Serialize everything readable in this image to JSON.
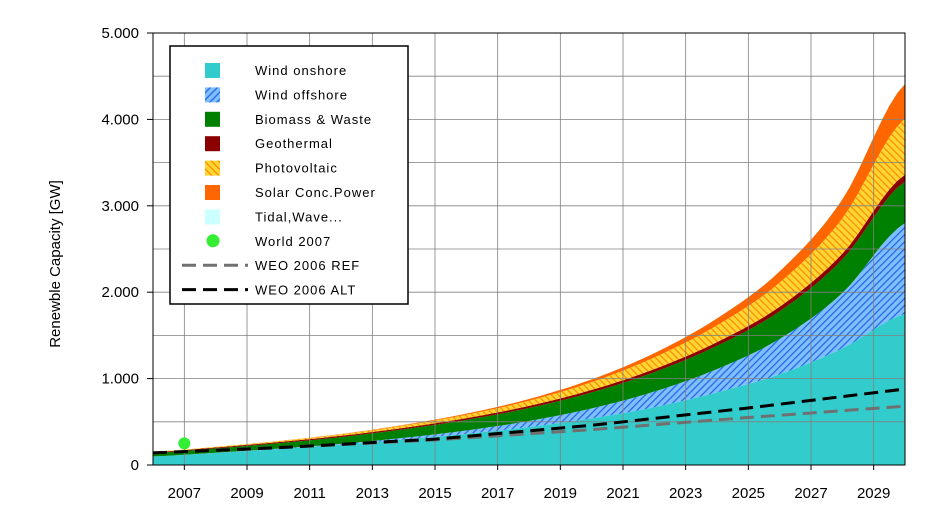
{
  "chart_data": {
    "type": "area",
    "ylabel": "Renewble Capacity [GW]",
    "xlim": [
      2006,
      2030
    ],
    "ylim": [
      0,
      5000
    ],
    "x_ticks": [
      2007,
      2009,
      2011,
      2013,
      2015,
      2017,
      2019,
      2021,
      2023,
      2025,
      2027,
      2029
    ],
    "x_tick_labels": [
      "2007",
      "2009",
      "2011",
      "2013",
      "2015",
      "2017",
      "2019",
      "2021",
      "2023",
      "2025",
      "2027",
      "2029"
    ],
    "y_ticks": [
      0,
      1000,
      2000,
      3000,
      4000,
      5000
    ],
    "y_tick_labels": [
      "0",
      "1.000",
      "2.000",
      "3.000",
      "4.000",
      "5.000"
    ],
    "grid": true,
    "legend_position": "top-left",
    "x": [
      2006,
      2008,
      2010,
      2012,
      2014,
      2016,
      2018,
      2020,
      2022,
      2024,
      2026,
      2028,
      2030
    ],
    "series": [
      {
        "name": "Wind onshore",
        "kind": "area",
        "color": "#33cccc",
        "pattern": "solid",
        "values": [
          100,
          140,
          185,
          235,
          295,
          360,
          440,
          540,
          670,
          840,
          1050,
          1350,
          1750
        ]
      },
      {
        "name": "Wind offshore",
        "kind": "area",
        "color": "#1e82ff",
        "pattern": "hatch",
        "values": [
          0,
          2,
          5,
          10,
          20,
          40,
          70,
          115,
          180,
          270,
          410,
          640,
          1050
        ]
      },
      {
        "name": "Biomass & Waste",
        "kind": "area",
        "color": "#008000",
        "pattern": "solid",
        "values": [
          40,
          50,
          62,
          78,
          98,
          122,
          150,
          185,
          225,
          270,
          320,
          390,
          480
        ]
      },
      {
        "name": "Geothermal",
        "kind": "area",
        "color": "#8b0000",
        "pattern": "solid",
        "values": [
          10,
          11,
          13,
          15,
          17,
          20,
          24,
          29,
          35,
          42,
          52,
          65,
          80
        ]
      },
      {
        "name": "Photovoltaic",
        "kind": "area",
        "color": "#ff9900",
        "pattern": "hatch",
        "values": [
          5,
          8,
          12,
          18,
          28,
          40,
          60,
          90,
          135,
          195,
          280,
          410,
          650
        ]
      },
      {
        "name": "Solar Conc.Power",
        "kind": "area",
        "color": "#ff6600",
        "pattern": "solid",
        "values": [
          0,
          0,
          1,
          3,
          6,
          12,
          20,
          32,
          50,
          80,
          130,
          220,
          400
        ]
      },
      {
        "name": "Tidal,Wave...",
        "kind": "area",
        "color": "#ccffff",
        "pattern": "solid",
        "values": [
          0,
          0,
          0,
          0,
          0,
          0,
          0,
          1,
          2,
          3,
          5,
          8,
          12
        ]
      },
      {
        "name": "World 2007",
        "kind": "point",
        "color": "#33ee33",
        "points": [
          [
            2007,
            250
          ]
        ]
      },
      {
        "name": "WEO 2006 REF",
        "kind": "line",
        "color": "#707070",
        "dash": "long",
        "points": [
          [
            2006,
            140
          ],
          [
            2010,
            200
          ],
          [
            2015,
            290
          ],
          [
            2020,
            410
          ],
          [
            2025,
            550
          ],
          [
            2030,
            680
          ]
        ]
      },
      {
        "name": "WEO 2006 ALT",
        "kind": "line",
        "color": "#000000",
        "dash": "long",
        "points": [
          [
            2006,
            140
          ],
          [
            2010,
            200
          ],
          [
            2015,
            300
          ],
          [
            2020,
            460
          ],
          [
            2025,
            660
          ],
          [
            2030,
            880
          ]
        ]
      }
    ]
  }
}
